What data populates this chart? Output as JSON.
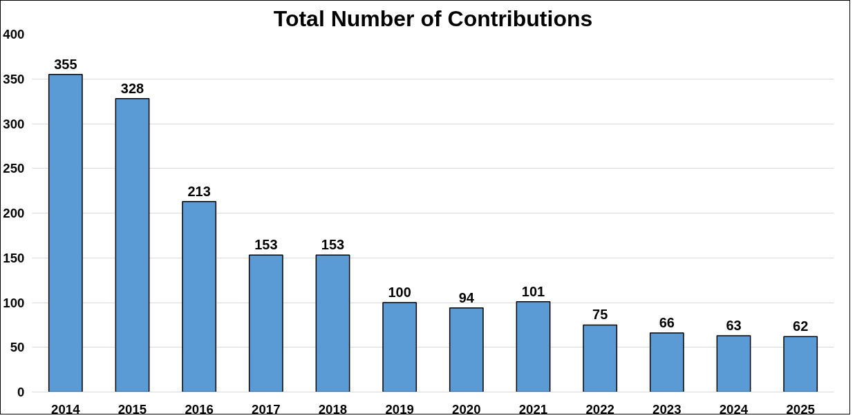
{
  "chart_data": {
    "type": "bar",
    "title": "Total Number of Contributions",
    "categories": [
      "2014",
      "2015",
      "2016",
      "2017",
      "2018",
      "2019",
      "2020",
      "2021",
      "2022",
      "2023",
      "2024",
      "2025"
    ],
    "values": [
      355,
      328,
      213,
      153,
      153,
      100,
      94,
      101,
      75,
      66,
      63,
      62
    ],
    "color": "#5b9bd5",
    "ylim": [
      0,
      400
    ],
    "yticks": [
      0,
      50,
      100,
      150,
      200,
      250,
      300,
      350,
      400
    ],
    "grid": "y",
    "data_labels": true
  }
}
